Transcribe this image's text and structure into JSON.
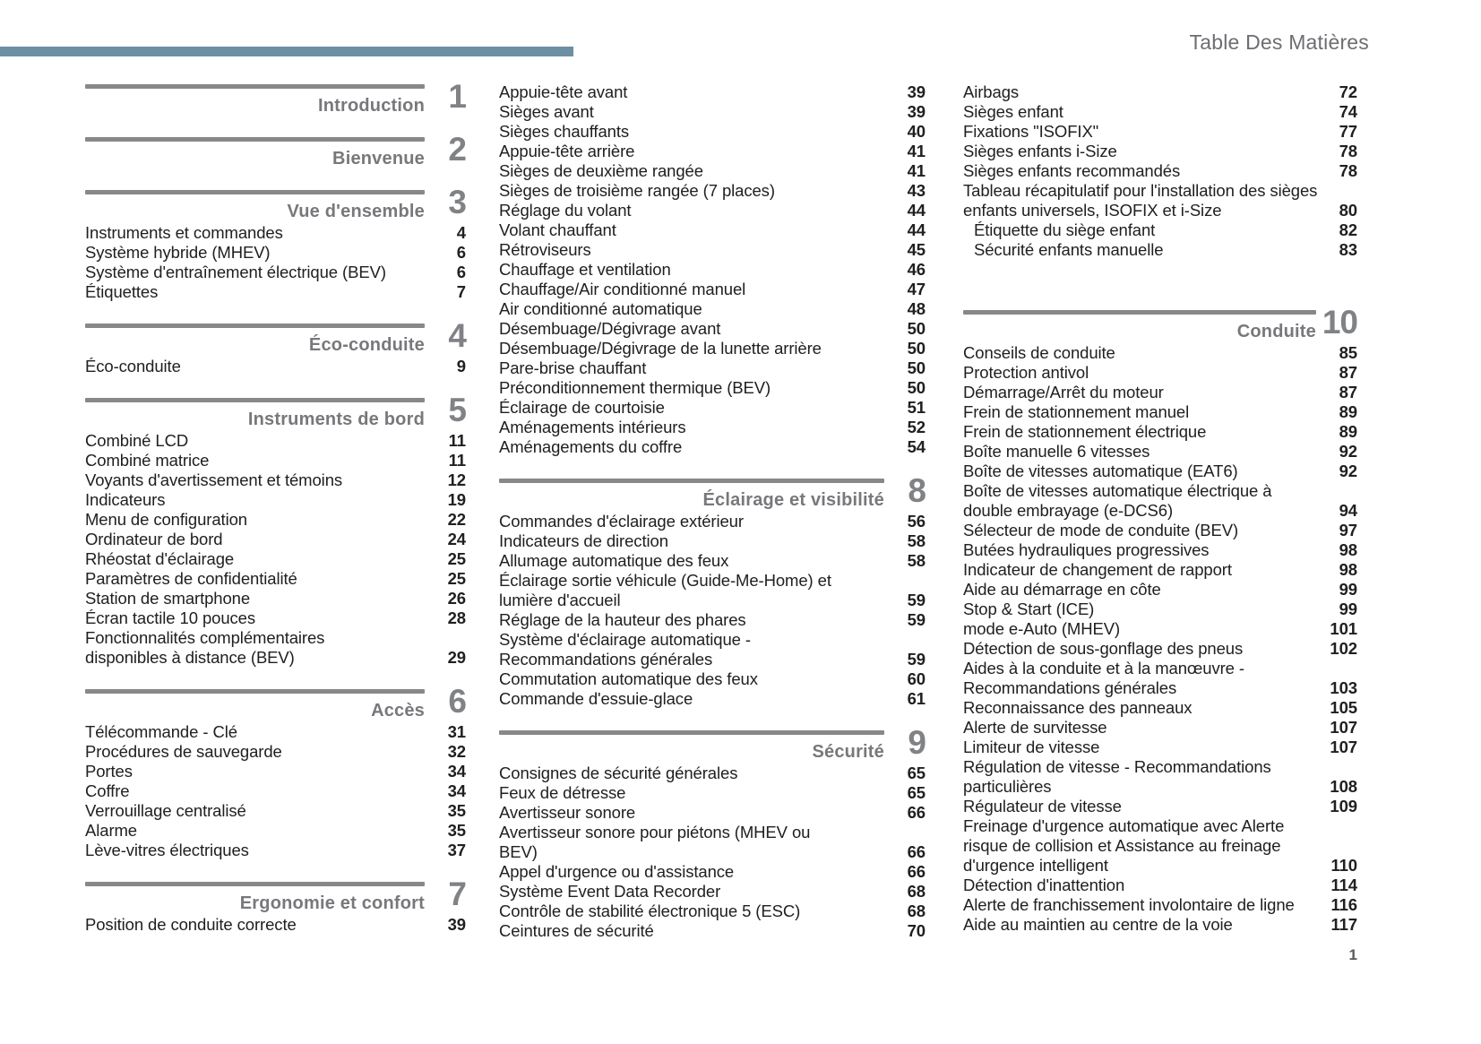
{
  "header": {
    "title": "Table Des Matières"
  },
  "footer": {
    "page_number": "1"
  },
  "colors": {
    "accent_bar": "#6d8fa4",
    "section_rule": "#87888a",
    "section_title": "#77787b",
    "section_number": "#808285",
    "item_text": "#202022",
    "header_text": "#6d6e71"
  },
  "columns": [
    {
      "blocks": [
        {
          "type": "section",
          "title": "Introduction",
          "number": "1"
        },
        {
          "type": "section",
          "title": "Bienvenue",
          "number": "2"
        },
        {
          "type": "section",
          "title": "Vue d'ensemble",
          "number": "3"
        },
        {
          "type": "items",
          "items": [
            {
              "label": "Instruments et commandes",
              "page": "4"
            },
            {
              "label": "Système hybride (MHEV)",
              "page": "6"
            },
            {
              "label": "Système d'entraînement électrique (BEV)",
              "page": "6"
            },
            {
              "label": "Étiquettes",
              "page": "7"
            }
          ]
        },
        {
          "type": "section",
          "title": "Éco-conduite",
          "number": "4"
        },
        {
          "type": "items",
          "items": [
            {
              "label": "Éco-conduite",
              "page": "9"
            }
          ]
        },
        {
          "type": "section",
          "title": "Instruments de bord",
          "number": "5"
        },
        {
          "type": "items",
          "items": [
            {
              "label": "Combiné LCD",
              "page": "11"
            },
            {
              "label": "Combiné matrice",
              "page": "11"
            },
            {
              "label": "Voyants d'avertissement et témoins",
              "page": "12"
            },
            {
              "label": "Indicateurs",
              "page": "19"
            },
            {
              "label": "Menu de configuration",
              "page": "22"
            },
            {
              "label": "Ordinateur de bord",
              "page": "24"
            },
            {
              "label": "Rhéostat d'éclairage",
              "page": "25"
            },
            {
              "label": "Paramètres de confidentialité",
              "page": "25"
            },
            {
              "label": "Station de smartphone",
              "page": "26"
            },
            {
              "label": "Écran tactile 10 pouces",
              "page": "28"
            },
            {
              "label": "Fonctionnalités complémentaires disponibles à distance (BEV)",
              "page": "29"
            }
          ]
        },
        {
          "type": "section",
          "title": "Accès",
          "number": "6"
        },
        {
          "type": "items",
          "items": [
            {
              "label": "Télécommande - Clé",
              "page": "31"
            },
            {
              "label": "Procédures de sauvegarde",
              "page": "32"
            },
            {
              "label": "Portes",
              "page": "34"
            },
            {
              "label": "Coffre",
              "page": "34"
            },
            {
              "label": "Verrouillage centralisé",
              "page": "35"
            },
            {
              "label": "Alarme",
              "page": "35"
            },
            {
              "label": "Lève-vitres électriques",
              "page": "37"
            }
          ]
        },
        {
          "type": "section",
          "title": "Ergonomie et confort",
          "number": "7"
        },
        {
          "type": "items",
          "items": [
            {
              "label": "Position de conduite correcte",
              "page": "39"
            }
          ]
        }
      ]
    },
    {
      "blocks": [
        {
          "type": "items",
          "items": [
            {
              "label": "Appuie-tête avant",
              "page": "39"
            },
            {
              "label": "Sièges avant",
              "page": "39"
            },
            {
              "label": "Sièges chauffants",
              "page": "40"
            },
            {
              "label": "Appuie-tête arrière",
              "page": "41"
            },
            {
              "label": "Sièges de deuxième rangée",
              "page": "41"
            },
            {
              "label": "Sièges de troisième rangée (7 places)",
              "page": "43"
            },
            {
              "label": "Réglage du volant",
              "page": "44"
            },
            {
              "label": "Volant chauffant",
              "page": "44"
            },
            {
              "label": "Rétroviseurs",
              "page": "45"
            },
            {
              "label": "Chauffage et ventilation",
              "page": "46"
            },
            {
              "label": "Chauffage/Air conditionné manuel",
              "page": "47"
            },
            {
              "label": "Air conditionné automatique",
              "page": "48"
            },
            {
              "label": "Désembuage/Dégivrage avant",
              "page": "50"
            },
            {
              "label": "Désembuage/Dégivrage de la lunette arrière",
              "page": "50"
            },
            {
              "label": "Pare-brise chauffant",
              "page": "50"
            },
            {
              "label": "Préconditionnement thermique (BEV)",
              "page": "50"
            },
            {
              "label": "Éclairage de courtoisie",
              "page": "51"
            },
            {
              "label": "Aménagements intérieurs",
              "page": "52"
            },
            {
              "label": "Aménagements du coffre",
              "page": "54"
            }
          ]
        },
        {
          "type": "section",
          "title": "Éclairage et visibilité",
          "number": "8"
        },
        {
          "type": "items",
          "items": [
            {
              "label": "Commandes d'éclairage extérieur",
              "page": "56"
            },
            {
              "label": "Indicateurs de direction",
              "page": "58"
            },
            {
              "label": "Allumage automatique des feux",
              "page": "58"
            },
            {
              "label": "Éclairage sortie véhicule (Guide-Me-Home) et lumière d'accueil",
              "page": "59"
            },
            {
              "label": "Réglage de la hauteur des phares",
              "page": "59"
            },
            {
              "label": "Système d'éclairage automatique - Recommandations générales",
              "page": "59"
            },
            {
              "label": "Commutation automatique des feux",
              "page": "60"
            },
            {
              "label": "Commande d'essuie-glace",
              "page": "61"
            }
          ]
        },
        {
          "type": "section",
          "title": "Sécurité",
          "number": "9"
        },
        {
          "type": "items",
          "items": [
            {
              "label": "Consignes de sécurité générales",
              "page": "65"
            },
            {
              "label": "Feux de détresse",
              "page": "65"
            },
            {
              "label": "Avertisseur sonore",
              "page": "66"
            },
            {
              "label": "Avertisseur sonore pour piétons (MHEV ou BEV)",
              "page": "66"
            },
            {
              "label": "Appel d'urgence ou d'assistance",
              "page": "66"
            },
            {
              "label": "Système Event Data Recorder",
              "page": "68"
            },
            {
              "label": "Contrôle de stabilité électronique 5 (ESC)",
              "page": "68"
            },
            {
              "label": "Ceintures de sécurité",
              "page": "70"
            }
          ]
        }
      ]
    },
    {
      "blocks": [
        {
          "type": "items",
          "items": [
            {
              "label": "Airbags",
              "page": "72"
            },
            {
              "label": "Sièges enfant",
              "page": "74"
            },
            {
              "label": "Fixations \"ISOFIX\"",
              "page": "77"
            },
            {
              "label": "Sièges enfants i-Size",
              "page": "78"
            },
            {
              "label": "Sièges enfants recommandés",
              "page": "78"
            },
            {
              "label": "Tableau récapitulatif pour l'installation des sièges enfants universels, ISOFIX et i-Size",
              "page": "80"
            },
            {
              "label": "Étiquette du siège enfant",
              "page": "82",
              "indent": true
            },
            {
              "label": "Sécurité enfants manuelle",
              "page": "83",
              "indent": true
            }
          ]
        },
        {
          "type": "section",
          "title": "Conduite",
          "number": "10",
          "extra_gap": true
        },
        {
          "type": "items",
          "items": [
            {
              "label": "Conseils de conduite",
              "page": "85"
            },
            {
              "label": "Protection antivol",
              "page": "87"
            },
            {
              "label": "Démarrage/Arrêt du moteur",
              "page": "87"
            },
            {
              "label": "Frein de stationnement manuel",
              "page": "89"
            },
            {
              "label": "Frein de stationnement électrique",
              "page": "89"
            },
            {
              "label": "Boîte manuelle 6 vitesses",
              "page": "92"
            },
            {
              "label": "Boîte de vitesses automatique (EAT6)",
              "page": "92"
            },
            {
              "label": "Boîte de vitesses automatique électrique à double embrayage (e-DCS6)",
              "page": "94"
            },
            {
              "label": "Sélecteur de mode de conduite (BEV)",
              "page": "97"
            },
            {
              "label": "Butées hydrauliques progressives",
              "page": "98"
            },
            {
              "label": "Indicateur de changement de rapport",
              "page": "98"
            },
            {
              "label": "Aide au démarrage en côte",
              "page": "99"
            },
            {
              "label": "Stop & Start (ICE)",
              "page": "99"
            },
            {
              "label": "mode e-Auto (MHEV)",
              "page": "101"
            },
            {
              "label": "Détection de sous-gonflage des pneus",
              "page": "102"
            },
            {
              "label": "Aides à la conduite et à la manœuvre - Recommandations générales",
              "page": "103"
            },
            {
              "label": "Reconnaissance des panneaux",
              "page": "105"
            },
            {
              "label": "Alerte de survitesse",
              "page": "107"
            },
            {
              "label": "Limiteur de vitesse",
              "page": "107"
            },
            {
              "label": "Régulation de vitesse - Recommandations particulières",
              "page": "108"
            },
            {
              "label": "Régulateur de vitesse",
              "page": "109"
            },
            {
              "label": "Freinage d'urgence automatique avec Alerte risque de collision et Assistance au freinage d'urgence intelligent",
              "page": "110"
            },
            {
              "label": "Détection d'inattention",
              "page": "114"
            },
            {
              "label": "Alerte de franchissement involontaire de ligne",
              "page": "116"
            },
            {
              "label": "Aide au maintien au centre de la voie",
              "page": "117"
            }
          ]
        }
      ]
    }
  ]
}
